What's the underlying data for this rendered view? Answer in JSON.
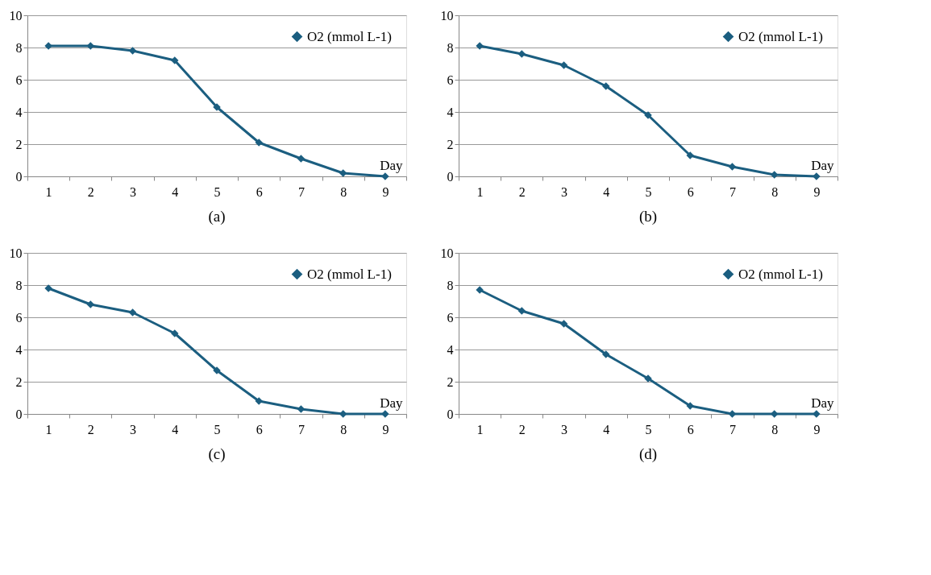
{
  "chart_data": [
    {
      "type": "line",
      "title": "(a)",
      "xlabel": "Day",
      "categories": [
        "1",
        "2",
        "3",
        "4",
        "5",
        "6",
        "7",
        "8",
        "9"
      ],
      "ylim": [
        0,
        10
      ],
      "yticks": [
        0,
        2,
        4,
        6,
        8,
        10
      ],
      "grid": "y",
      "legend": "top right",
      "marker": "diamond",
      "series": [
        {
          "name": "O2 (mmol L-1)",
          "color": "#1b5e80",
          "values": [
            8.1,
            8.1,
            7.8,
            7.2,
            4.3,
            2.1,
            1.1,
            0.2,
            0
          ]
        }
      ]
    },
    {
      "type": "line",
      "title": "(b)",
      "xlabel": "Day",
      "categories": [
        "1",
        "2",
        "3",
        "4",
        "5",
        "6",
        "7",
        "8",
        "9"
      ],
      "ylim": [
        0,
        10
      ],
      "yticks": [
        0,
        2,
        4,
        6,
        8,
        10
      ],
      "grid": "y",
      "legend": "top right",
      "marker": "diamond",
      "series": [
        {
          "name": "O2 (mmol L-1)",
          "color": "#1b5e80",
          "values": [
            8.1,
            7.6,
            6.9,
            5.6,
            3.8,
            1.3,
            0.6,
            0.1,
            0
          ]
        }
      ]
    },
    {
      "type": "line",
      "title": "(c)",
      "xlabel": "Day",
      "categories": [
        "1",
        "2",
        "3",
        "4",
        "5",
        "6",
        "7",
        "8",
        "9"
      ],
      "ylim": [
        0,
        10
      ],
      "yticks": [
        0,
        2,
        4,
        6,
        8,
        10
      ],
      "grid": "y",
      "legend": "top right",
      "marker": "diamond",
      "series": [
        {
          "name": "O2 (mmol L-1)",
          "color": "#1b5e80",
          "values": [
            7.8,
            6.8,
            6.3,
            5.0,
            2.7,
            0.8,
            0.3,
            0,
            0
          ]
        }
      ]
    },
    {
      "type": "line",
      "title": "(d)",
      "xlabel": "Day",
      "categories": [
        "1",
        "2",
        "3",
        "4",
        "5",
        "6",
        "7",
        "8",
        "9"
      ],
      "ylim": [
        0,
        10
      ],
      "yticks": [
        0,
        2,
        4,
        6,
        8,
        10
      ],
      "grid": "y",
      "legend": "top right",
      "marker": "diamond",
      "series": [
        {
          "name": "O2 (mmol L-1)",
          "color": "#1b5e80",
          "values": [
            7.7,
            6.4,
            5.6,
            3.7,
            2.2,
            0.5,
            0,
            0,
            0
          ]
        }
      ]
    }
  ]
}
